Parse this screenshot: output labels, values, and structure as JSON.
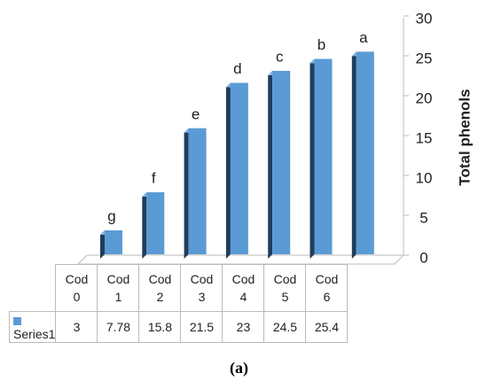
{
  "chart_data": {
    "type": "bar",
    "categories": [
      "Cod 0",
      "Cod 1",
      "Cod 2",
      "Cod 3",
      "Cod 4",
      "Cod 5",
      "Cod 6"
    ],
    "series": [
      {
        "name": "Series1",
        "color": "#5b9bd5",
        "values": [
          3,
          7.78,
          15.8,
          21.5,
          23,
          24.5,
          25.4
        ]
      }
    ],
    "annotations": [
      "g",
      "f",
      "e",
      "d",
      "c",
      "b",
      "a"
    ],
    "y_label": "Total phenols",
    "ylim": [
      0,
      30
    ],
    "yticks": [
      0,
      5,
      10,
      15,
      20,
      25,
      30
    ],
    "caption": "(a)"
  }
}
